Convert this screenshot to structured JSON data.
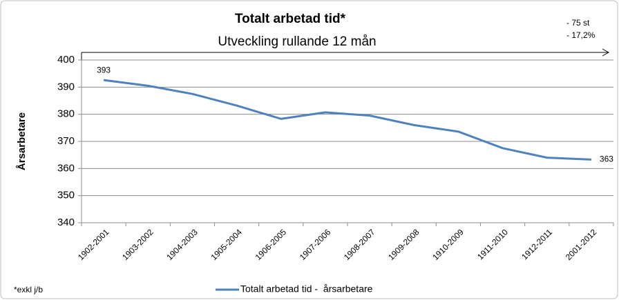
{
  "chart_data": {
    "type": "line",
    "title": "Totalt arbetad tid*",
    "subtitle": "Utveckling rullande 12 mån",
    "annotations": [
      "- 75 st",
      "- 17,2%"
    ],
    "footnote": "*exkl j/b",
    "y_label": "Årsarbetare",
    "categories": [
      "1902-2001",
      "1903-2002",
      "1904-2003",
      "1905-2004",
      "1906-2005",
      "1907-2006",
      "1908-2007",
      "1909-2008",
      "1910-2009",
      "1911-2010",
      "1912-2011",
      "2001-2012"
    ],
    "series": [
      {
        "name": "Totalt arbetad tid -  årsarbetare",
        "color": "#4f81bd",
        "values": [
          392.6,
          390.5,
          387.5,
          383.2,
          378.3,
          380.7,
          379.5,
          376.0,
          373.6,
          367.5,
          364.0,
          363.3
        ],
        "value_labels": [
          "393",
          null,
          null,
          null,
          null,
          null,
          null,
          null,
          null,
          null,
          null,
          "363"
        ]
      }
    ],
    "ylim": [
      340,
      400
    ],
    "yticks": [
      340,
      350,
      360,
      370,
      380,
      390,
      400
    ],
    "grid": true
  }
}
